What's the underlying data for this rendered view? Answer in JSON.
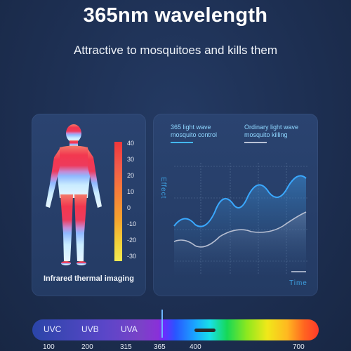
{
  "title": "365nm wavelength",
  "subtitle": "Attractive to mosquitoes and kills them",
  "thermal": {
    "caption": "Infrared thermal imaging",
    "scale_ticks": [
      "40",
      "30",
      "20",
      "10",
      "0",
      "-10",
      "-20",
      "-30"
    ]
  },
  "chart": {
    "legend_a": [
      "365 light wave",
      "mosquito control"
    ],
    "legend_b": [
      "Ordinary light wave",
      "mosquito killing"
    ],
    "y_label": "Effect",
    "x_label": "Time"
  },
  "spectrum": {
    "bands": [
      "UVC",
      "UVB",
      "UVA"
    ],
    "ticks": [
      "100",
      "200",
      "315",
      "365",
      "400",
      "700"
    ]
  }
}
